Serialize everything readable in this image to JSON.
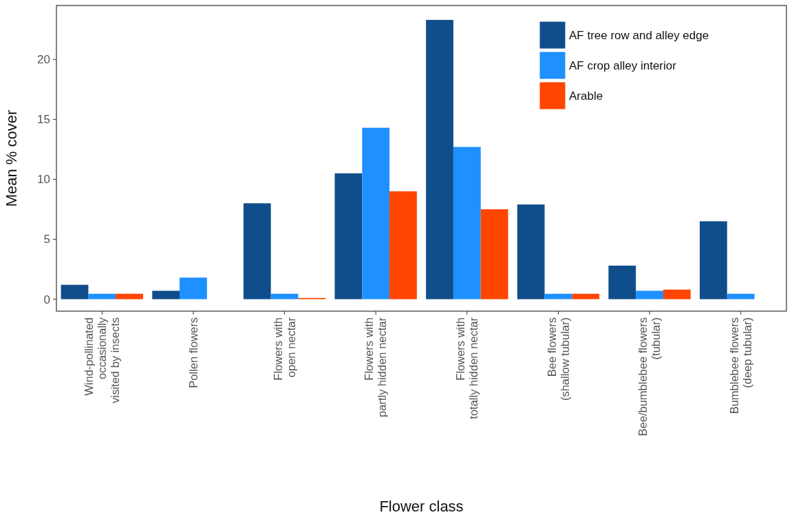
{
  "chart_data": {
    "type": "bar",
    "xlabel": "Flower class",
    "ylabel": "Mean % cover",
    "categories": [
      "Wind-pollinated\noccasionally\nvisited by insects",
      "Pollen flowers",
      "Flowers with\nopen nectar",
      "Flowers with\npartly hidden nectar",
      "Flowers with\ntotally hidden nectar",
      "Bee flowers\n(shallow tubular)",
      "Bee/bumblebee flowers\n(tubular)",
      "Bumblebee flowers\n(deep tubular)"
    ],
    "series": [
      {
        "name": "AF tree row and alley edge",
        "color": "#104e8b",
        "values": [
          1.2,
          0.7,
          8.0,
          10.5,
          23.3,
          7.9,
          2.8,
          6.5
        ]
      },
      {
        "name": "AF crop alley interior",
        "color": "#1e90ff",
        "values": [
          0.45,
          1.8,
          0.45,
          14.3,
          12.7,
          0.45,
          0.7,
          0.45
        ]
      },
      {
        "name": "Arable",
        "color": "#ff4500",
        "values": [
          0.45,
          null,
          0.1,
          9.0,
          7.5,
          0.45,
          0.8,
          null
        ]
      }
    ],
    "ylim": [
      -1,
      24.5
    ],
    "yticks": [
      0,
      5,
      10,
      15,
      20
    ],
    "grid": false,
    "legend": "top right"
  }
}
